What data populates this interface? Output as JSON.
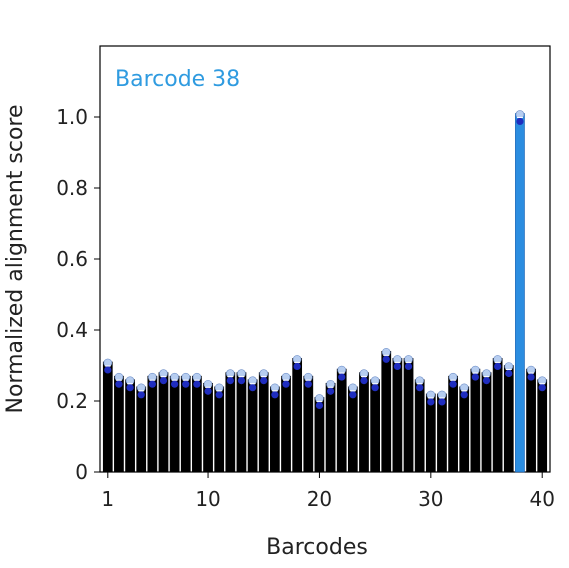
{
  "chart_data": {
    "type": "bar",
    "title": "",
    "xlabel": "Barcodes",
    "ylabel": "Normalized alignment score",
    "annotation": "Barcode 38",
    "x": [
      1,
      2,
      3,
      4,
      5,
      6,
      7,
      8,
      9,
      10,
      11,
      12,
      13,
      14,
      15,
      16,
      17,
      18,
      19,
      20,
      21,
      22,
      23,
      24,
      25,
      26,
      27,
      28,
      29,
      30,
      31,
      32,
      33,
      34,
      35,
      36,
      37,
      38,
      39,
      40
    ],
    "values": [
      0.31,
      0.27,
      0.26,
      0.24,
      0.27,
      0.28,
      0.27,
      0.27,
      0.27,
      0.25,
      0.24,
      0.28,
      0.28,
      0.26,
      0.28,
      0.24,
      0.27,
      0.32,
      0.27,
      0.21,
      0.25,
      0.29,
      0.24,
      0.28,
      0.26,
      0.34,
      0.32,
      0.32,
      0.26,
      0.22,
      0.22,
      0.27,
      0.24,
      0.29,
      0.28,
      0.32,
      0.3,
      1.01,
      0.29,
      0.26
    ],
    "highlight": 38,
    "xticks": [
      1,
      10,
      20,
      30,
      40
    ],
    "yticks": [
      0,
      0.2,
      0.4,
      0.6,
      0.8,
      1.0
    ],
    "yticklabels": [
      "0",
      "0.2",
      "0.4",
      "0.6",
      "0.8",
      "1.0"
    ],
    "xlim": [
      0.3,
      40.7
    ],
    "ylim": [
      0,
      1.2
    ],
    "grid": false,
    "colors": {
      "bar": "#000000",
      "highlight_bar": "#2b8de0",
      "annotation": "#2f9be0",
      "point_dark": "#1f2dbf",
      "point_light": "#b6cdf0"
    }
  }
}
